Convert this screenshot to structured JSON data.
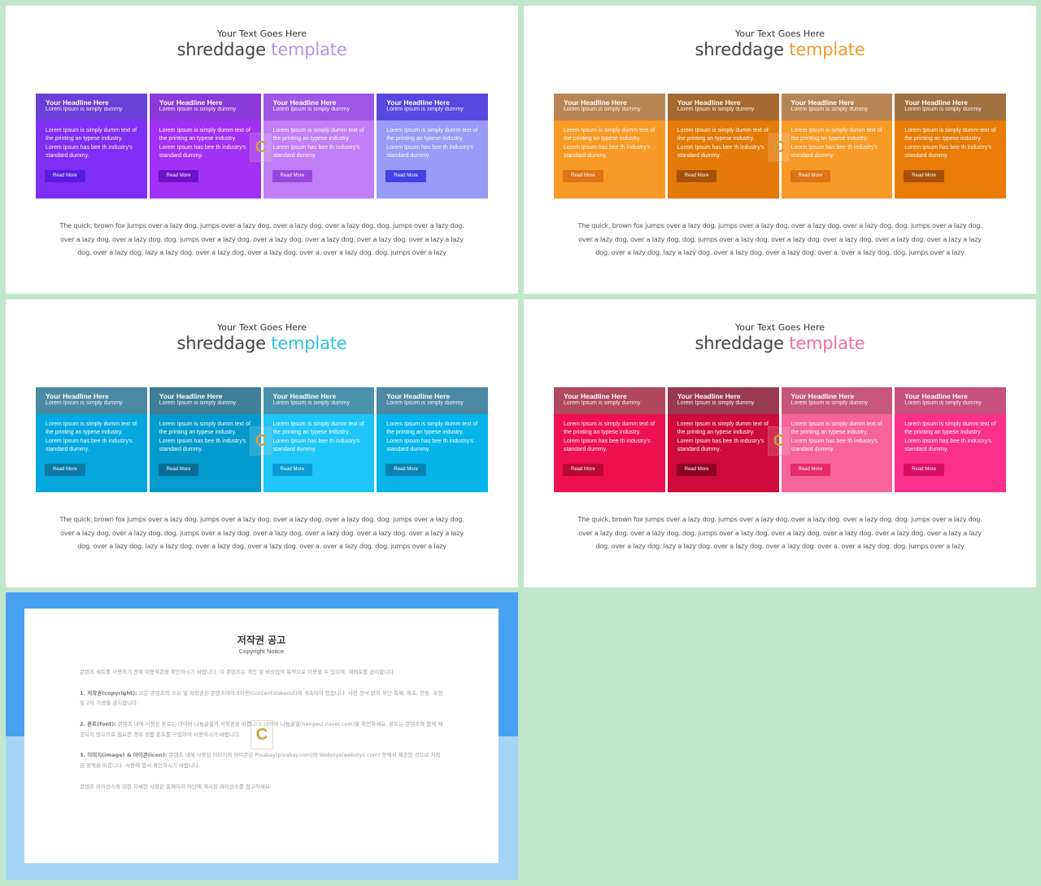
{
  "slides": [
    {
      "subtitle": "Your Text Goes Here",
      "title_main": "shreddage",
      "title_accent": "template",
      "accent_color": "#b892e6",
      "cards": [
        {
          "head_bg": "#6a3fd6",
          "body_bg": "#7f2ff5",
          "btn_bg": "#5a1ce0"
        },
        {
          "head_bg": "#8b3ad9",
          "body_bg": "#a330f5",
          "btn_bg": "#6e12c8"
        },
        {
          "head_bg": "#9e56e6",
          "body_bg": "#c07ef7",
          "btn_bg": "#9a47e0"
        },
        {
          "head_bg": "#5747e0",
          "body_bg": "#9a9af8",
          "btn_bg": "#4142e6"
        }
      ]
    },
    {
      "subtitle": "Your Text Goes Here",
      "title_main": "shreddage",
      "title_accent": "template",
      "accent_color": "#f39a2b",
      "cards": [
        {
          "head_bg": "#b98453",
          "body_bg": "#f99a26",
          "btn_bg": "#de7415"
        },
        {
          "head_bg": "#a66a30",
          "body_bg": "#e57a08",
          "btn_bg": "#a55106"
        },
        {
          "head_bg": "#b98453",
          "body_bg": "#f99a26",
          "btn_bg": "#de7415"
        },
        {
          "head_bg": "#a07040",
          "body_bg": "#e97c06",
          "btn_bg": "#a55106"
        }
      ]
    },
    {
      "subtitle": "Your Text Goes Here",
      "title_main": "shreddage",
      "title_accent": "template",
      "accent_color": "#2ec1e6",
      "cards": [
        {
          "head_bg": "#4b8aa2",
          "body_bg": "#04a8df",
          "btn_bg": "#0a78a4"
        },
        {
          "head_bg": "#3f7e96",
          "body_bg": "#039ace",
          "btn_bg": "#096c94"
        },
        {
          "head_bg": "#4b92ac",
          "body_bg": "#1fc6fa",
          "btn_bg": "#0a9bd0"
        },
        {
          "head_bg": "#4b8aa2",
          "body_bg": "#04b4ea",
          "btn_bg": "#0a82b2"
        }
      ]
    },
    {
      "subtitle": "Your Text Goes Here",
      "title_main": "shreddage",
      "title_accent": "template",
      "accent_color": "#f06e9e",
      "cards": [
        {
          "head_bg": "#b0485f",
          "body_bg": "#ef1052",
          "btn_bg": "#b70838"
        },
        {
          "head_bg": "#9a3a52",
          "body_bg": "#cf0a3c",
          "btn_bg": "#8c0226"
        },
        {
          "head_bg": "#c7577a",
          "body_bg": "#f7649a",
          "btn_bg": "#e72a69"
        },
        {
          "head_bg": "#c7507f",
          "body_bg": "#fb2f8c",
          "btn_bg": "#d60f63"
        }
      ]
    }
  ],
  "card_text": {
    "headline": "Your Headline Here",
    "subline": "Lorem Ipsum is simply dummy",
    "body": "Lorem Ipsum is simply dumm text of the printing an typese industry. Lorem Ipsum has bee th industry's standard dummy.",
    "button": "Read More"
  },
  "paragraph": "The quick, brown fox jumps over a lazy dog. jumps over a lazy dog. over a lazy dog. over a lazy dog. dog. jumps over a lazy dog. over a lazy dog. over a lazy dog. dog. jumps over a lazy dog. over a lazy dog. over a lazy dog. over a lazy dog. over a lazy a lazy dog. over a lazy dog. lazy a lazy dog. over a lazy dog. over a lazy dog. over a. over a lazy dog. dog. jumps over a lazy",
  "logo_glyph": "C",
  "notice": {
    "title": "저작권 공고",
    "subtitle": "Copyright Notice",
    "intro": "콘텐츠 세트를 사용하기 전에 이용약관을 확인하시기 바랍니다. 이 콘텐츠는 개인 및 비상업적 목적으로 이용할 수 있으며, 재배포를 금지합니다.",
    "s1_label": "1. 저작권(copyright):",
    "s1_text": "모든 콘텐츠의 소유 및 저작권은 콘텐츠테이크아웃(Contentstakeout)에 귀속되어 있습니다. 사전 승낙 없이 무단 복제, 배포, 전송, 수정 및 2차 가공을 금지합니다.",
    "s2_label": "2. 폰트(font):",
    "s2_text": "콘텐츠 내에 사용된 폰트는 네이버 나눔글꼴의 저작권을 따릅니다. 네이버 나눔글꼴(hangeul.naver.com)을 확인하세요. 폰트는 콘텐츠와 함께 제공되지 않으므로 필요한 경우 정품 폰트를 구입하여 사용하시기 바랍니다.",
    "s3_label": "3. 이미지(image) & 아이콘(icon):",
    "s3_text": "콘텐츠 내에 사용된 이미지와 아이콘은 Pixabay(pixabay.com)와 Webolys(webolys.com) 등에서 제공한 것으로 저작권 정책을 따릅니다. 사용에 앞서 확인하시기 바랍니다.",
    "outro": "콘텐츠 라이선스에 대한 자세한 사항은 홈페이지 하단에 게시된 라이선스를 참고하세요."
  }
}
